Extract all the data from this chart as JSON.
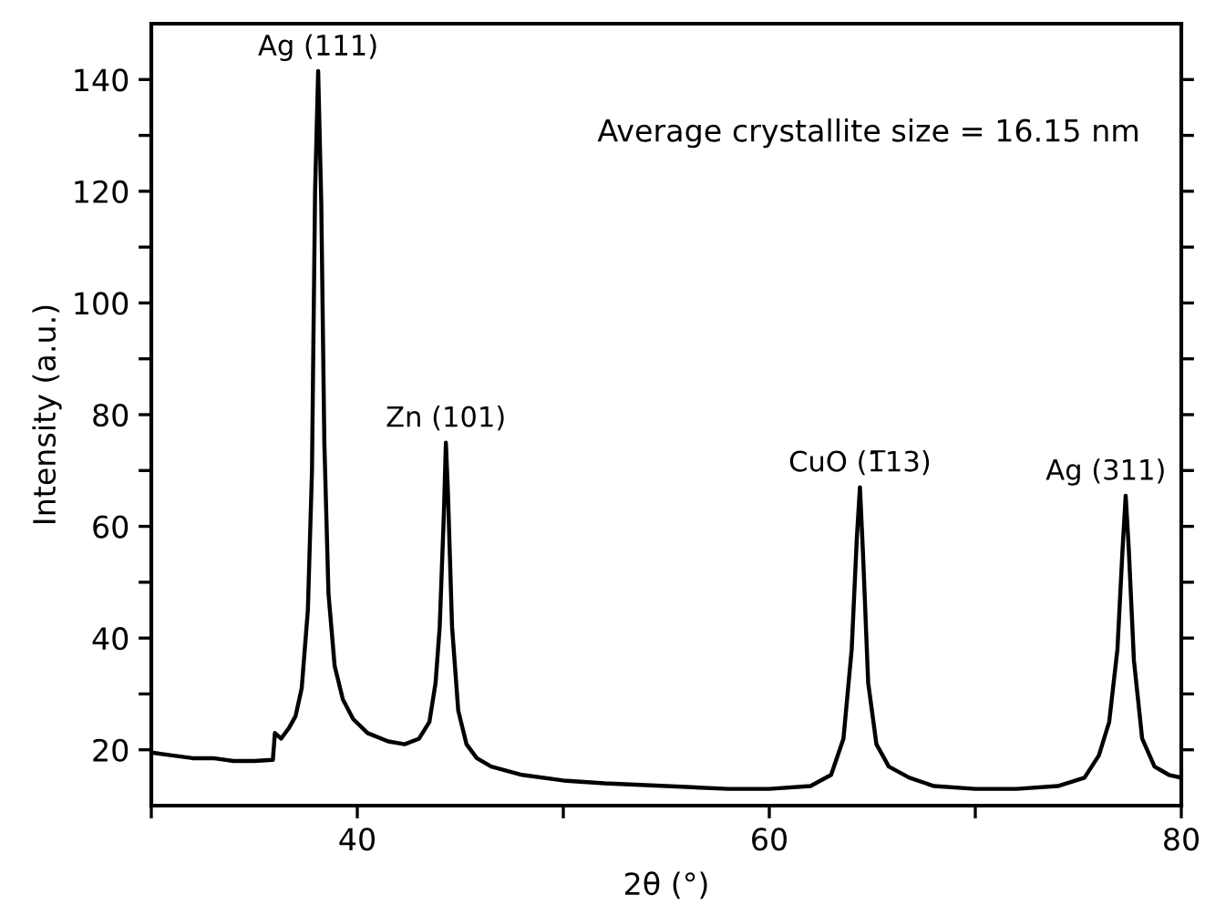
{
  "chart_data": {
    "type": "line",
    "xlabel": "2θ (°)",
    "ylabel": "Intensity (a.u.)",
    "x": [
      30,
      31,
      32,
      33,
      34,
      35,
      35.9,
      36.0,
      36.3,
      36.7,
      37.0,
      37.3,
      37.6,
      37.8,
      37.95,
      38.1,
      38.25,
      38.4,
      38.6,
      38.9,
      39.3,
      39.8,
      40.5,
      41.5,
      42.3,
      43.0,
      43.5,
      43.8,
      44.0,
      44.2,
      44.3,
      44.4,
      44.6,
      44.9,
      45.3,
      45.8,
      46.5,
      48,
      50,
      52,
      55,
      58,
      60,
      62,
      63,
      63.6,
      64.0,
      64.25,
      64.4,
      64.55,
      64.8,
      65.2,
      65.8,
      66.8,
      68,
      70,
      72,
      74,
      75.3,
      76.0,
      76.5,
      76.9,
      77.15,
      77.3,
      77.45,
      77.7,
      78.1,
      78.7,
      79.4,
      80
    ],
    "series": [
      {
        "color": "#000000",
        "values": [
          19.5,
          19,
          18.5,
          18.5,
          18,
          18,
          18.2,
          23,
          22,
          24,
          26,
          31,
          45,
          70,
          120,
          141.5,
          118,
          75,
          48,
          35,
          29,
          25.5,
          23,
          21.5,
          21,
          22,
          25,
          32,
          42,
          62,
          75,
          66,
          42,
          27,
          21,
          18.5,
          17,
          15.5,
          14.5,
          14,
          13.5,
          13,
          13,
          13.5,
          15.5,
          22,
          38,
          58,
          67,
          55,
          32,
          21,
          17,
          15,
          13.5,
          13,
          13,
          13.5,
          15,
          19,
          25,
          38,
          56,
          65.5,
          56,
          36,
          22,
          17,
          15.5,
          15
        ]
      }
    ],
    "xlim": [
      30,
      80
    ],
    "xticks": [
      {
        "value": 30,
        "label": null
      },
      40,
      {
        "value": 50,
        "label": null
      },
      60,
      {
        "value": 70,
        "label": null
      },
      80
    ],
    "ylim": [
      10,
      150
    ],
    "yticks": [
      20,
      {
        "value": 30,
        "label": null
      },
      40,
      {
        "value": 50,
        "label": null
      },
      60,
      {
        "value": 70,
        "label": null
      },
      80,
      {
        "value": 90,
        "label": null
      },
      100,
      {
        "value": 110,
        "label": null
      },
      120,
      {
        "value": 130,
        "label": null
      },
      140
    ],
    "grid": false,
    "legend": false,
    "marker": "none",
    "line_style": "solid",
    "annotations": [
      {
        "text": "Ag (111)",
        "x": 38.1,
        "y": 141.5
      },
      {
        "text": "Zn (101)",
        "x": 44.3,
        "y": 75
      },
      {
        "text": "CuO (1̅13)",
        "x": 64.4,
        "y": 67
      },
      {
        "text": "Ag (311)",
        "x": 77.3,
        "y": 65.5
      },
      "Average crystallite size = 16.15 nm"
    ]
  }
}
